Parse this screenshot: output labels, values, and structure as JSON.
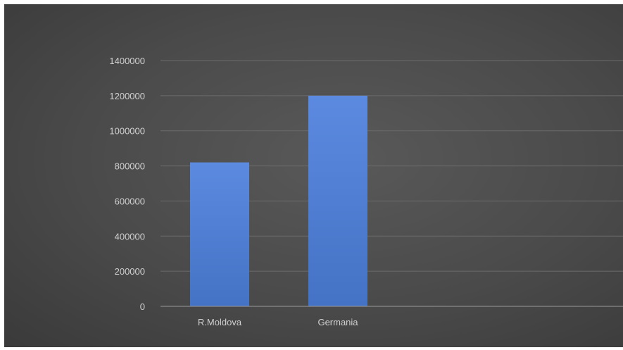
{
  "chart_data": {
    "type": "bar",
    "categories": [
      "R.Moldova",
      "Germania"
    ],
    "values": [
      820000,
      1200000
    ],
    "title": "",
    "xlabel": "",
    "ylabel": "",
    "ylim": [
      0,
      1400000
    ],
    "yticks": [
      "0",
      "200000",
      "400000",
      "600000",
      "800000",
      "1000000",
      "1200000",
      "1400000"
    ],
    "grid": true,
    "legend": "none",
    "colors": {
      "bar": "#4472c4",
      "bar_top": "#5b8ae0",
      "background": "#4f4f4f",
      "gridline": "#6b6b6b",
      "text": "#d0d0d0"
    }
  }
}
